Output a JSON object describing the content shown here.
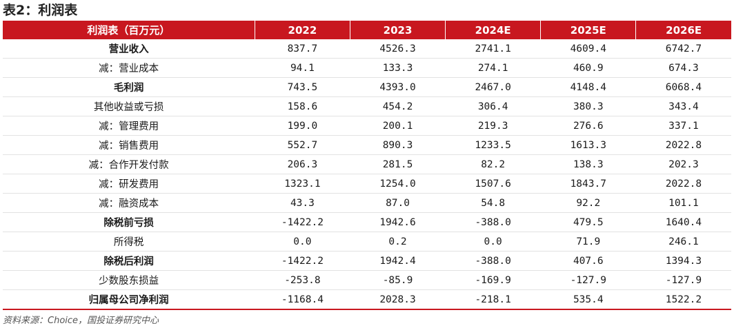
{
  "title": "表2：利润表",
  "header": [
    "利润表（百万元）",
    "2022",
    "2023",
    "2024E",
    "2025E",
    "2026E"
  ],
  "rows": [
    {
      "label": "营业收入",
      "bold": true,
      "values": [
        "837.7",
        "4526.3",
        "2741.1",
        "4609.4",
        "6742.7"
      ]
    },
    {
      "label": "减：营业成本",
      "bold": false,
      "values": [
        "94.1",
        "133.3",
        "274.1",
        "460.9",
        "674.3"
      ]
    },
    {
      "label": "毛利润",
      "bold": true,
      "values": [
        "743.5",
        "4393.0",
        "2467.0",
        "4148.4",
        "6068.4"
      ]
    },
    {
      "label": "其他收益或亏损",
      "bold": false,
      "values": [
        "158.6",
        "454.2",
        "306.4",
        "380.3",
        "343.4"
      ]
    },
    {
      "label": "减：管理费用",
      "bold": false,
      "values": [
        "199.0",
        "200.1",
        "219.3",
        "276.6",
        "337.1"
      ]
    },
    {
      "label": "减：销售费用",
      "bold": false,
      "values": [
        "552.7",
        "890.3",
        "1233.5",
        "1613.3",
        "2022.8"
      ]
    },
    {
      "label": "减：合作开发付款",
      "bold": false,
      "values": [
        "206.3",
        "281.5",
        "82.2",
        "138.3",
        "202.3"
      ]
    },
    {
      "label": "减：研发费用",
      "bold": false,
      "values": [
        "1323.1",
        "1254.0",
        "1507.6",
        "1843.7",
        "2022.8"
      ]
    },
    {
      "label": "减：融资成本",
      "bold": false,
      "values": [
        "43.3",
        "87.0",
        "54.8",
        "92.2",
        "101.1"
      ]
    },
    {
      "label": "除税前亏损",
      "bold": true,
      "values": [
        "-1422.2",
        "1942.6",
        "-388.0",
        "479.5",
        "1640.4"
      ]
    },
    {
      "label": "所得税",
      "bold": false,
      "values": [
        "0.0",
        "0.2",
        "0.0",
        "71.9",
        "246.1"
      ]
    },
    {
      "label": "除税后利润",
      "bold": true,
      "values": [
        "-1422.2",
        "1942.4",
        "-388.0",
        "407.6",
        "1394.3"
      ]
    },
    {
      "label": "少数股东损益",
      "bold": false,
      "values": [
        "-253.8",
        "-85.9",
        "-169.9",
        "-127.9",
        "-127.9"
      ]
    },
    {
      "label": "归属母公司净利润",
      "bold": true,
      "values": [
        "-1168.4",
        "2028.3",
        "-218.1",
        "535.4",
        "1522.2"
      ]
    }
  ],
  "source": "资料来源：Choice，国投证券研究中心"
}
